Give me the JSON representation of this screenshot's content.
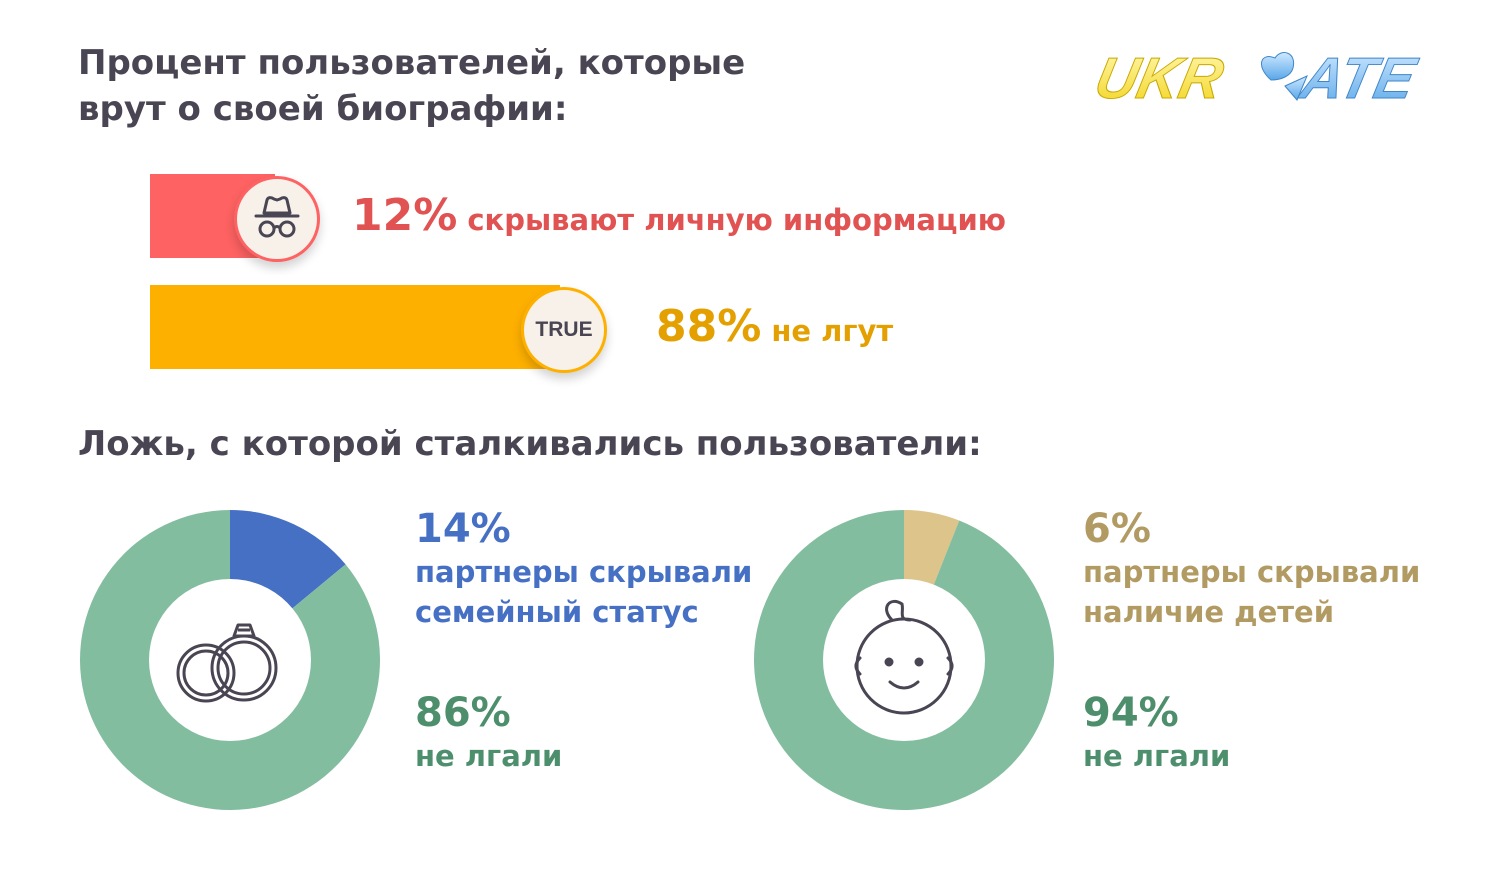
{
  "header": {
    "title": "Процент пользователей, которые\nврут о своей биографии:",
    "logo_text": "UKRDATE"
  },
  "bio_section": {
    "hide_pct": "12%",
    "hide_text": "скрывают личную информацию",
    "true_pct": "88%",
    "true_text": "не лгут",
    "true_badge": "TRUE",
    "icons": {
      "hide": "spy-hat-glasses-icon",
      "true": "true-badge-icon"
    },
    "colors": {
      "hide": "#fe6262",
      "true": "#feb000"
    }
  },
  "lies_section": {
    "title": "Ложь, с которой сталкивались пользователи:",
    "marital": {
      "pct": "14%",
      "line1": "партнеры скрывали",
      "line2": "семейный статус",
      "rest_pct": "86%",
      "rest_text": "не лгали",
      "icon": "wedding-rings-icon"
    },
    "children": {
      "pct": "6%",
      "line1": "партнеры скрывали",
      "line2": "наличие детей",
      "rest_pct": "94%",
      "rest_text": "не лгали",
      "icon": "baby-face-icon"
    }
  },
  "chart_data": [
    {
      "type": "bar",
      "categories": [
        "скрывают личную информацию",
        "не лгут"
      ],
      "values": [
        12,
        88
      ],
      "colors": [
        "#fe6262",
        "#feb000"
      ]
    },
    {
      "type": "pie",
      "categories": [
        "партнеры скрывали семейный статус",
        "не лгали"
      ],
      "values": [
        14,
        86
      ],
      "colors": [
        "#4670c4",
        "#83bd9f"
      ]
    },
    {
      "type": "pie",
      "categories": [
        "партнеры скрывали наличие детей",
        "не лгали"
      ],
      "values": [
        6,
        94
      ],
      "colors": [
        "#dcc48b",
        "#83bd9f"
      ]
    }
  ]
}
